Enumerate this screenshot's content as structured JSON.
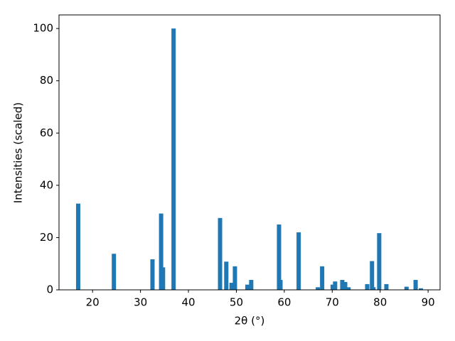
{
  "chart_data": {
    "type": "bar",
    "x_label": "2θ (°)",
    "y_label": "Intensities (scaled)",
    "x": [
      17.0,
      24.45,
      32.5,
      34.3,
      34.7,
      36.9,
      46.6,
      47.9,
      49.0,
      49.7,
      52.3,
      53.1,
      58.9,
      59.2,
      63.0,
      67.0,
      67.9,
      70.1,
      70.6,
      72.1,
      72.7,
      73.4,
      77.3,
      78.3,
      78.6,
      79.8,
      81.3,
      85.5,
      87.4,
      88.5
    ],
    "values": [
      33,
      13.8,
      11.7,
      29.2,
      8.6,
      100,
      27.5,
      10.8,
      2.7,
      9,
      2,
      3.8,
      25,
      3.8,
      22,
      1,
      9,
      2,
      3.2,
      3.8,
      3,
      1,
      2.2,
      11,
      1,
      21.7,
      2.2,
      1.2,
      3.8,
      0.6
    ],
    "color": "#1f77b4",
    "xlim": [
      13.0,
      92.5
    ],
    "xticks": [
      20,
      30,
      40,
      50,
      60,
      70,
      80,
      90
    ],
    "ylim": [
      0,
      105.2
    ],
    "yticks": [
      0,
      20,
      40,
      60,
      80,
      100
    ],
    "grid": false
  }
}
